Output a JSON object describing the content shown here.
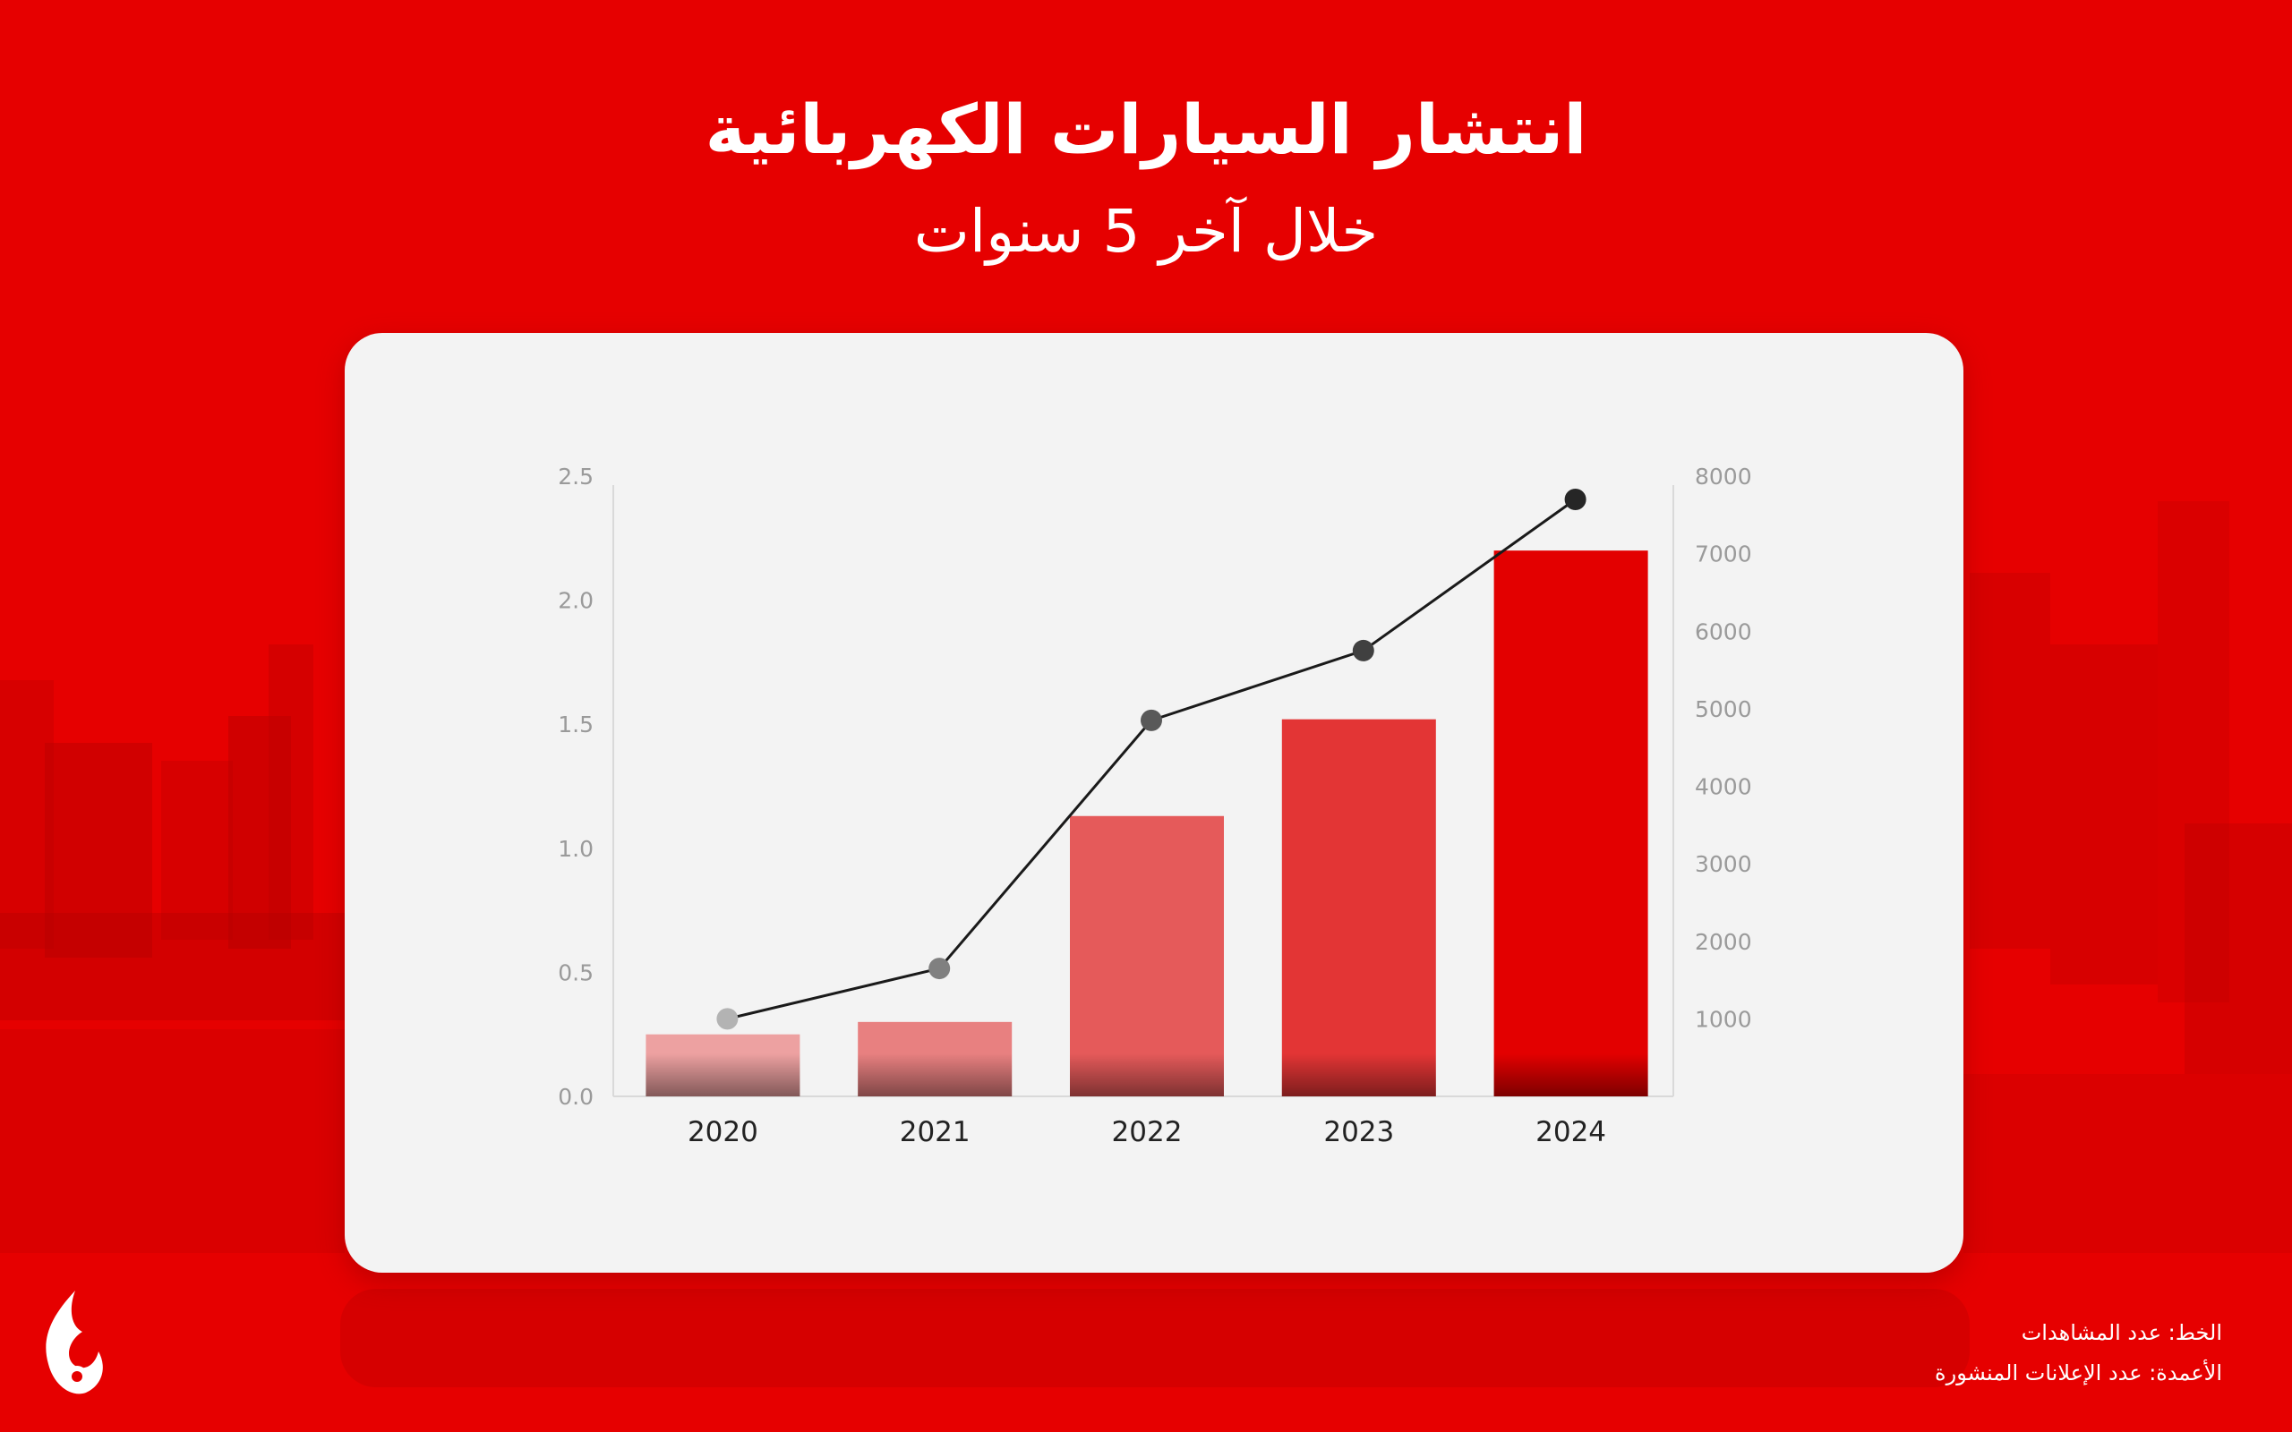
{
  "header": {
    "title": "انتشار السيارات الكهربائية",
    "subtitle": "خلال آخر 5 سنوات"
  },
  "legend": {
    "line": "الخط: عدد المشاهدات",
    "bars": "الأعمدة: عدد الإعلانات المنشورة"
  },
  "colors": {
    "background": "#e60000",
    "bars": [
      "#eda1a1",
      "#e88080",
      "#e55a5a",
      "#e33535",
      "#e30000"
    ],
    "line": "#1a1a1a",
    "points": [
      "#b3b3b3",
      "#808080",
      "#595959",
      "#404040",
      "#262626"
    ]
  },
  "logo": "flame-logo",
  "chart_data": {
    "type": "bar",
    "categories": [
      "2020",
      "2021",
      "2022",
      "2023",
      "2024"
    ],
    "series": [
      {
        "type": "bar",
        "axis": "left",
        "values": [
          0.25,
          0.3,
          1.13,
          1.52,
          2.2
        ]
      },
      {
        "type": "line",
        "axis": "right",
        "values": [
          1000,
          1650,
          4850,
          5750,
          7700
        ]
      }
    ],
    "y_left": {
      "min": 0,
      "max": 2.5,
      "ticks": [
        "0.0",
        "0.5",
        "1.0",
        "1.5",
        "2.0",
        "2.5"
      ]
    },
    "y_right": {
      "min": 0,
      "max": 8000,
      "ticks": [
        "1000",
        "2000",
        "3000",
        "4000",
        "5000",
        "6000",
        "7000",
        "8000"
      ]
    },
    "grid": false
  }
}
